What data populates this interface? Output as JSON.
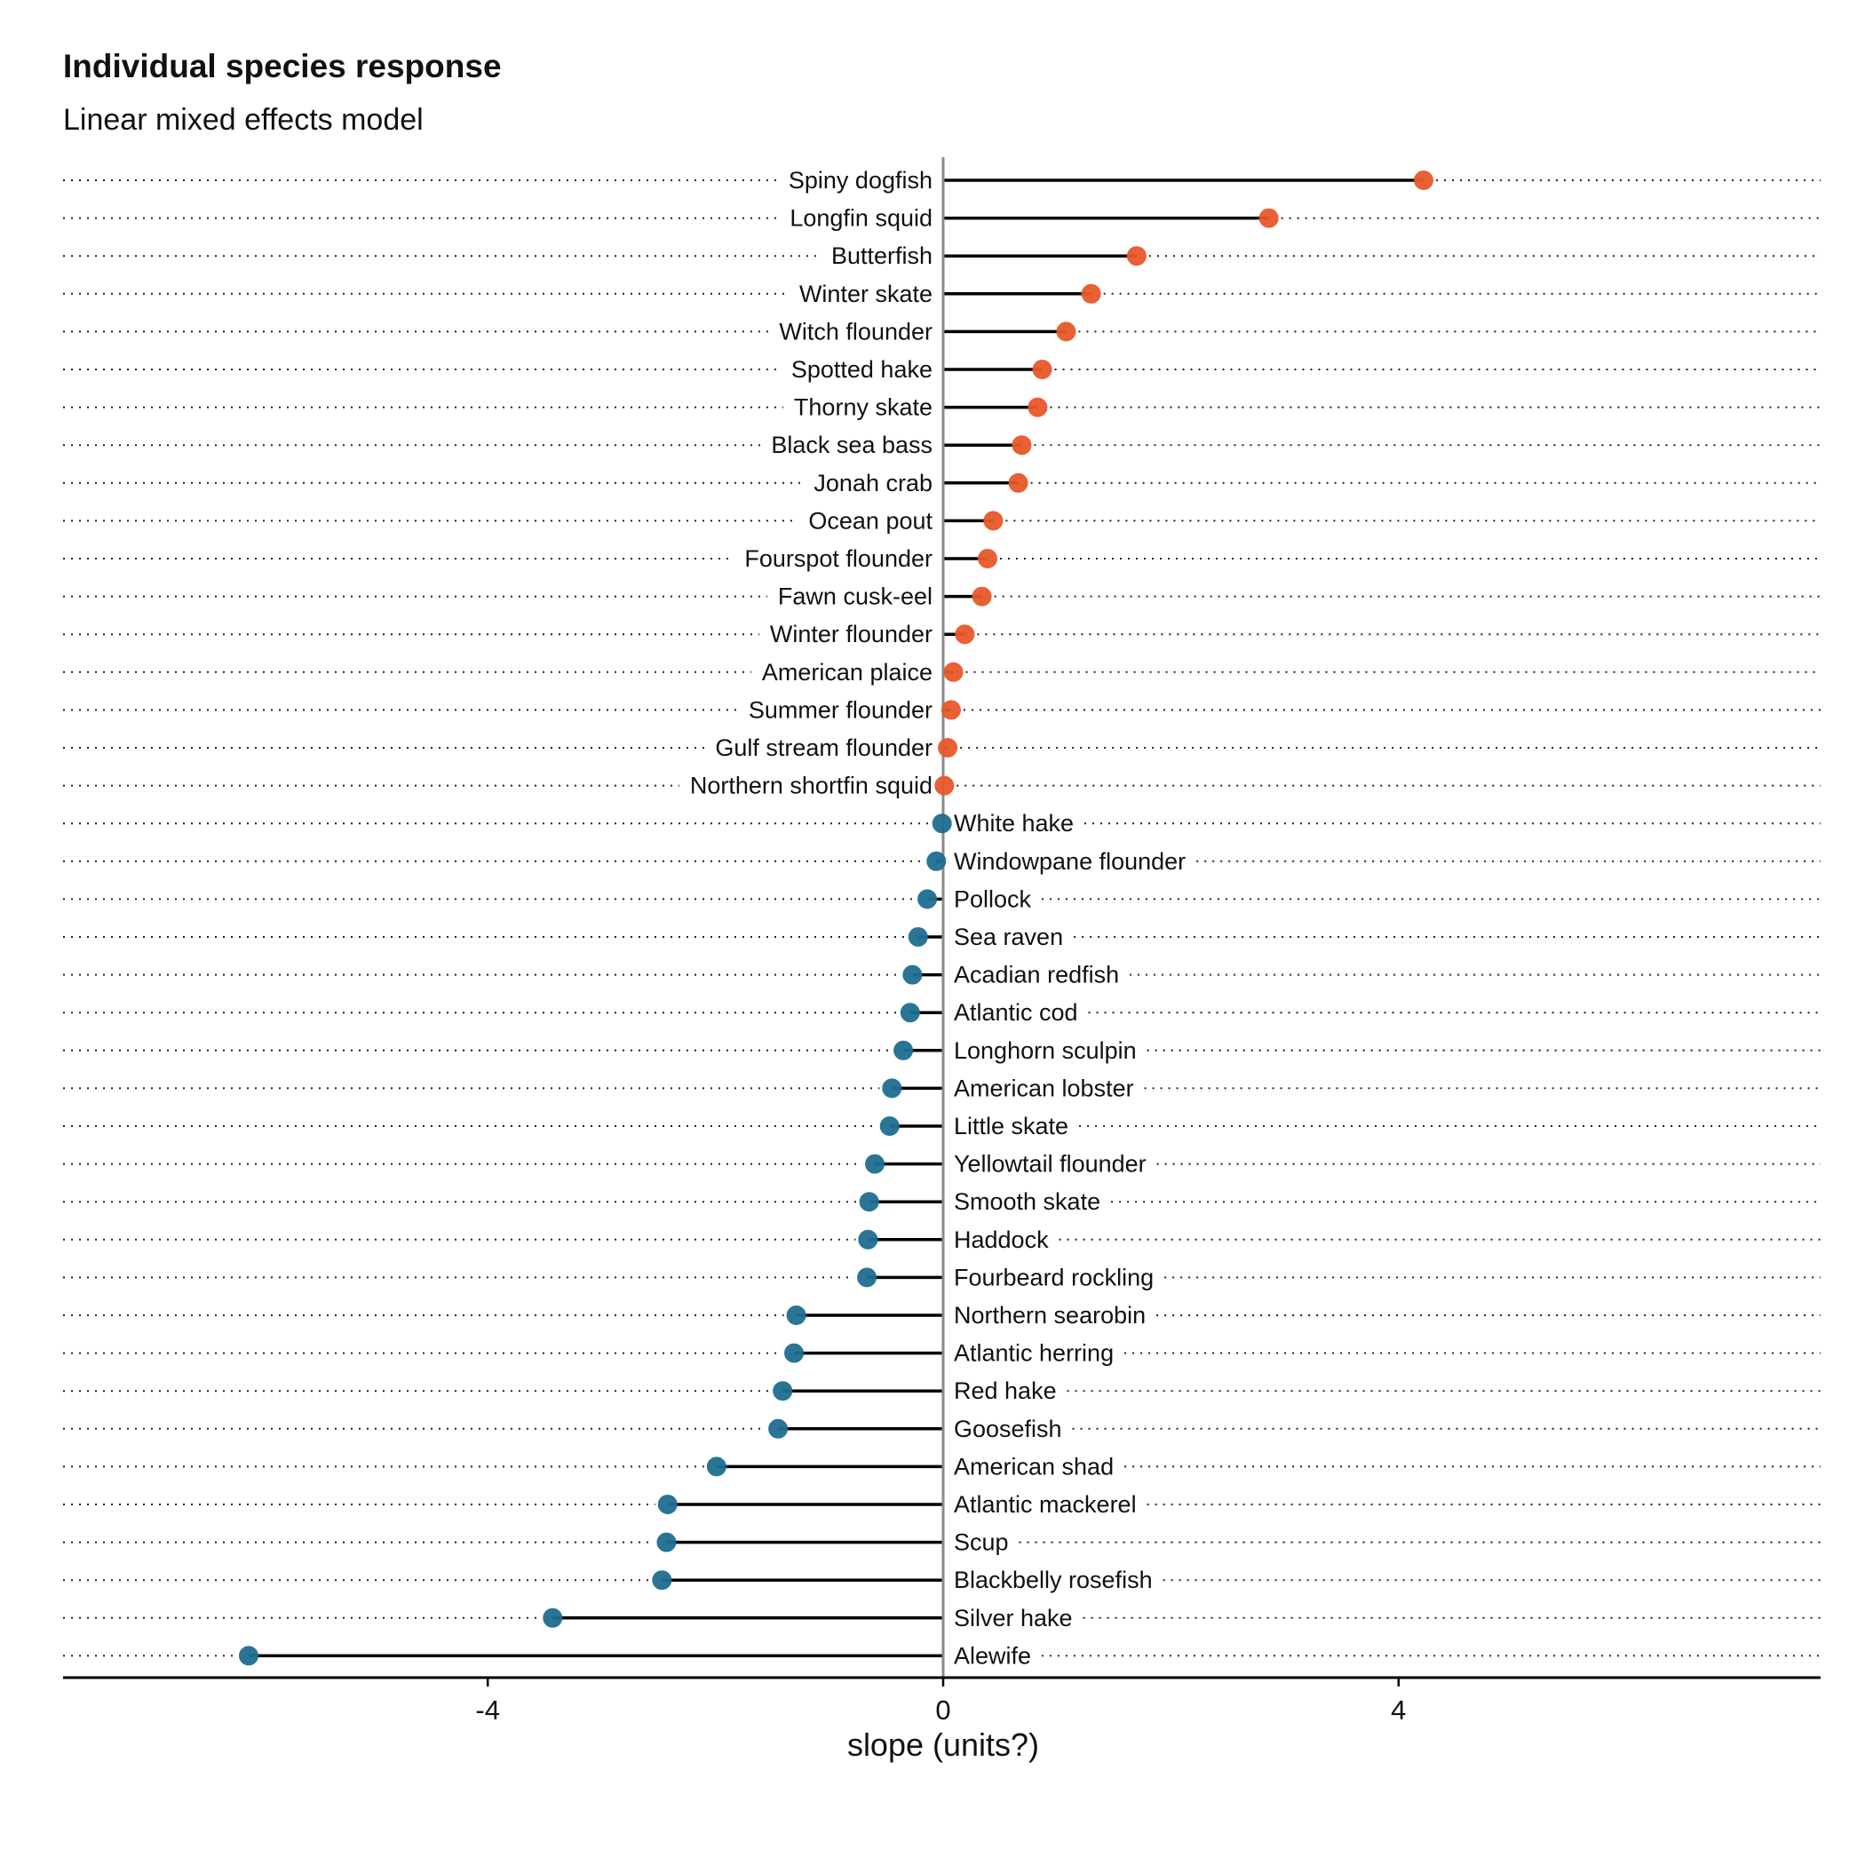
{
  "chart_data": {
    "type": "lollipop",
    "title": "Individual species response",
    "subtitle": "Linear mixed effects model",
    "xlabel": "slope (units?)",
    "ylabel": "",
    "xlim": [
      -7.7,
      7.7
    ],
    "xticks": [
      -4,
      0,
      4
    ],
    "grid": "dotted horizontal guide lines",
    "colors": {
      "positive": "#e8582a",
      "negative": "#1f6e91",
      "stem": "#000000",
      "zero_line": "#8a8a8a"
    },
    "species": [
      "Spiny dogfish",
      "Longfin squid",
      "Butterfish",
      "Winter skate",
      "Witch flounder",
      "Spotted hake",
      "Thorny skate",
      "Black sea bass",
      "Jonah crab",
      "Ocean pout",
      "Fourspot flounder",
      "Fawn cusk-eel",
      "Winter flounder",
      "American plaice",
      "Summer flounder",
      "Gulf stream flounder",
      "Northern shortfin squid",
      "White hake",
      "Windowpane flounder",
      "Pollock",
      "Sea raven",
      "Acadian redfish",
      "Atlantic cod",
      "Longhorn sculpin",
      "American lobster",
      "Little skate",
      "Yellowtail flounder",
      "Smooth skate",
      "Haddock",
      "Fourbeard rockling",
      "Northern searobin",
      "Atlantic herring",
      "Red hake",
      "Goosefish",
      "American shad",
      "Atlantic mackerel",
      "Scup",
      "Blackbelly rosefish",
      "Silver hake",
      "Alewife"
    ],
    "slopes": [
      4.22,
      2.86,
      1.7,
      1.3,
      1.08,
      0.87,
      0.83,
      0.69,
      0.66,
      0.44,
      0.39,
      0.34,
      0.19,
      0.09,
      0.07,
      0.04,
      0.01,
      -0.01,
      -0.06,
      -0.14,
      -0.22,
      -0.27,
      -0.29,
      -0.35,
      -0.45,
      -0.47,
      -0.6,
      -0.65,
      -0.66,
      -0.67,
      -1.29,
      -1.31,
      -1.41,
      -1.45,
      -1.99,
      -2.42,
      -2.43,
      -2.47,
      -3.43,
      -6.1
    ]
  }
}
